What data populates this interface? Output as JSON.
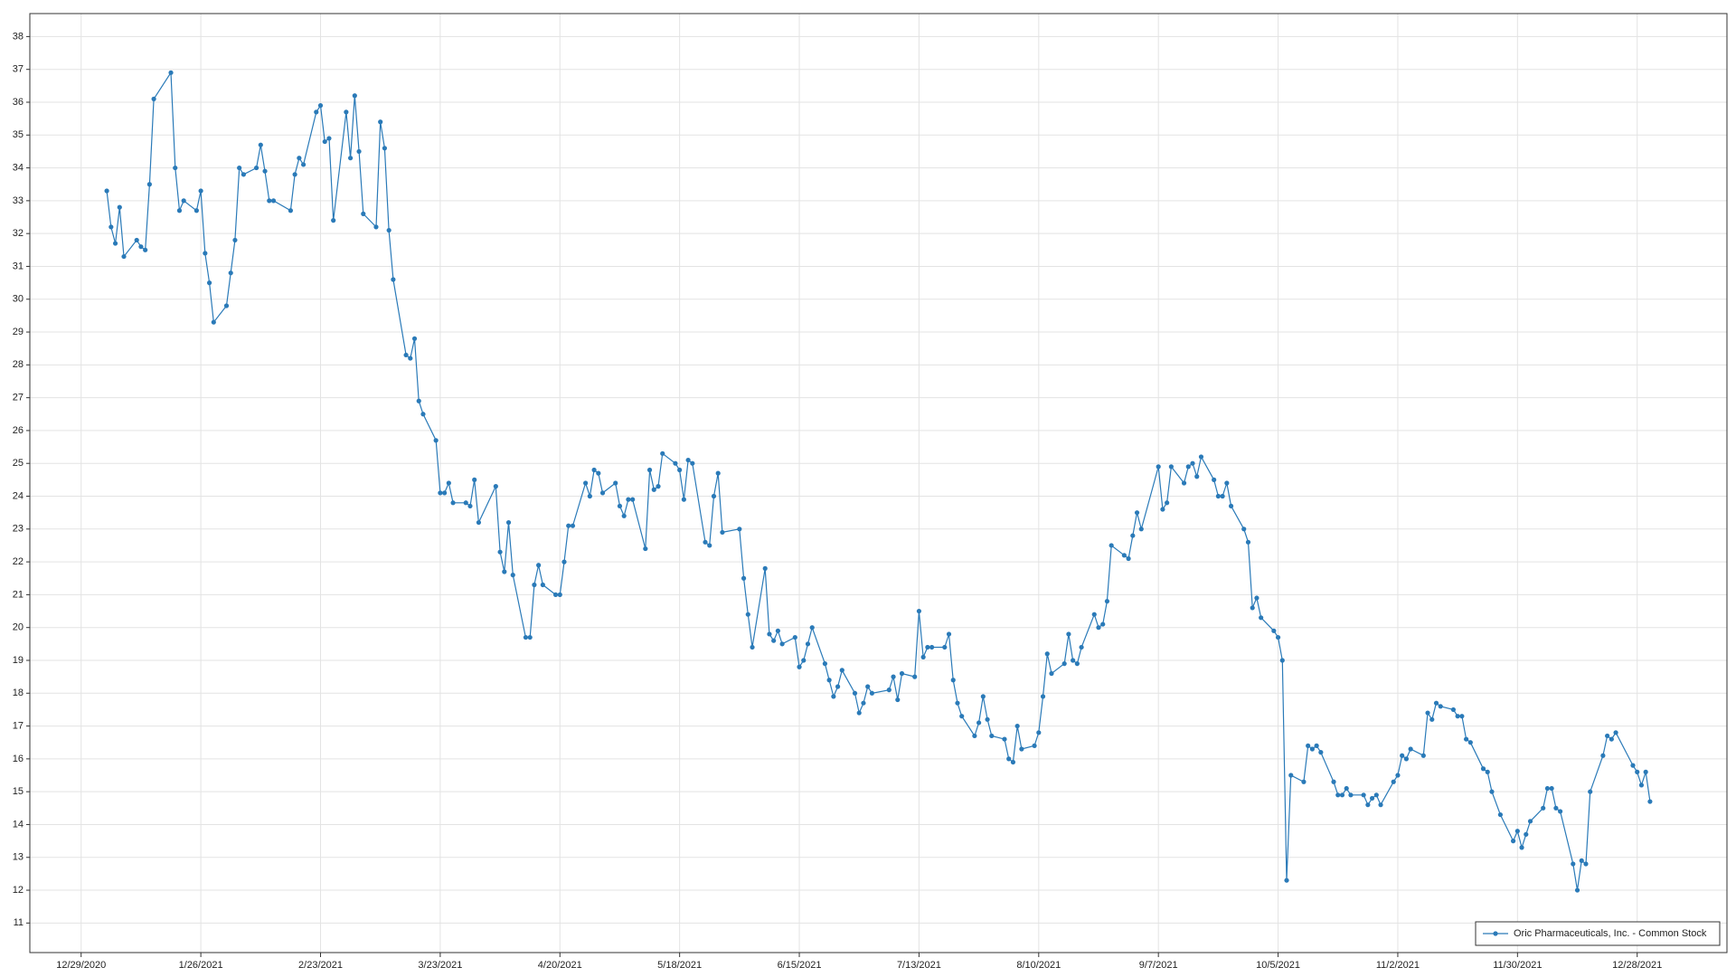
{
  "chart_data": {
    "type": "line",
    "x": [
      "1/4/2021",
      "1/5/2021",
      "1/6/2021",
      "1/7/2021",
      "1/8/2021",
      "1/11/2021",
      "1/12/2021",
      "1/13/2021",
      "1/14/2021",
      "1/15/2021",
      "1/19/2021",
      "1/20/2021",
      "1/21/2021",
      "1/22/2021",
      "1/25/2021",
      "1/26/2021",
      "1/27/2021",
      "1/28/2021",
      "1/29/2021",
      "2/1/2021",
      "2/2/2021",
      "2/3/2021",
      "2/4/2021",
      "2/5/2021",
      "2/8/2021",
      "2/9/2021",
      "2/10/2021",
      "2/11/2021",
      "2/12/2021",
      "2/16/2021",
      "2/17/2021",
      "2/18/2021",
      "2/19/2021",
      "2/22/2021",
      "2/23/2021",
      "2/24/2021",
      "2/25/2021",
      "2/26/2021",
      "3/1/2021",
      "3/2/2021",
      "3/3/2021",
      "3/4/2021",
      "3/5/2021",
      "3/8/2021",
      "3/9/2021",
      "3/10/2021",
      "3/11/2021",
      "3/12/2021",
      "3/15/2021",
      "3/16/2021",
      "3/17/2021",
      "3/18/2021",
      "3/19/2021",
      "3/22/2021",
      "3/23/2021",
      "3/24/2021",
      "3/25/2021",
      "3/26/2021",
      "3/29/2021",
      "3/30/2021",
      "3/31/2021",
      "4/1/2021",
      "4/5/2021",
      "4/6/2021",
      "4/7/2021",
      "4/8/2021",
      "4/9/2021",
      "4/12/2021",
      "4/13/2021",
      "4/14/2021",
      "4/15/2021",
      "4/16/2021",
      "4/19/2021",
      "4/20/2021",
      "4/21/2021",
      "4/22/2021",
      "4/23/2021",
      "4/26/2021",
      "4/27/2021",
      "4/28/2021",
      "4/29/2021",
      "4/30/2021",
      "5/3/2021",
      "5/4/2021",
      "5/5/2021",
      "5/6/2021",
      "5/7/2021",
      "5/10/2021",
      "5/11/2021",
      "5/12/2021",
      "5/13/2021",
      "5/14/2021",
      "5/17/2021",
      "5/18/2021",
      "5/19/2021",
      "5/20/2021",
      "5/21/2021",
      "5/24/2021",
      "5/25/2021",
      "5/26/2021",
      "5/27/2021",
      "5/28/2021",
      "6/1/2021",
      "6/2/2021",
      "6/3/2021",
      "6/4/2021",
      "6/7/2021",
      "6/8/2021",
      "6/9/2021",
      "6/10/2021",
      "6/11/2021",
      "6/14/2021",
      "6/15/2021",
      "6/16/2021",
      "6/17/2021",
      "6/18/2021",
      "6/21/2021",
      "6/22/2021",
      "6/23/2021",
      "6/24/2021",
      "6/25/2021",
      "6/28/2021",
      "6/29/2021",
      "6/30/2021",
      "7/1/2021",
      "7/2/2021",
      "7/6/2021",
      "7/7/2021",
      "7/8/2021",
      "7/9/2021",
      "7/12/2021",
      "7/13/2021",
      "7/14/2021",
      "7/15/2021",
      "7/16/2021",
      "7/19/2021",
      "7/20/2021",
      "7/21/2021",
      "7/22/2021",
      "7/23/2021",
      "7/26/2021",
      "7/27/2021",
      "7/28/2021",
      "7/29/2021",
      "7/30/2021",
      "8/2/2021",
      "8/3/2021",
      "8/4/2021",
      "8/5/2021",
      "8/6/2021",
      "8/9/2021",
      "8/10/2021",
      "8/11/2021",
      "8/12/2021",
      "8/13/2021",
      "8/16/2021",
      "8/17/2021",
      "8/18/2021",
      "8/19/2021",
      "8/20/2021",
      "8/23/2021",
      "8/24/2021",
      "8/25/2021",
      "8/26/2021",
      "8/27/2021",
      "8/30/2021",
      "8/31/2021",
      "9/1/2021",
      "9/2/2021",
      "9/3/2021",
      "9/7/2021",
      "9/8/2021",
      "9/9/2021",
      "9/10/2021",
      "9/13/2021",
      "9/14/2021",
      "9/15/2021",
      "9/16/2021",
      "9/17/2021",
      "9/20/2021",
      "9/21/2021",
      "9/22/2021",
      "9/23/2021",
      "9/24/2021",
      "9/27/2021",
      "9/28/2021",
      "9/29/2021",
      "9/30/2021",
      "10/1/2021",
      "10/4/2021",
      "10/5/2021",
      "10/6/2021",
      "10/7/2021",
      "10/8/2021",
      "10/11/2021",
      "10/12/2021",
      "10/13/2021",
      "10/14/2021",
      "10/15/2021",
      "10/18/2021",
      "10/19/2021",
      "10/20/2021",
      "10/21/2021",
      "10/22/2021",
      "10/25/2021",
      "10/26/2021",
      "10/27/2021",
      "10/28/2021",
      "10/29/2021",
      "11/1/2021",
      "11/2/2021",
      "11/3/2021",
      "11/4/2021",
      "11/5/2021",
      "11/8/2021",
      "11/9/2021",
      "11/10/2021",
      "11/11/2021",
      "11/12/2021",
      "11/15/2021",
      "11/16/2021",
      "11/17/2021",
      "11/18/2021",
      "11/19/2021",
      "11/22/2021",
      "11/23/2021",
      "11/24/2021",
      "11/26/2021",
      "11/29/2021",
      "11/30/2021",
      "12/1/2021",
      "12/2/2021",
      "12/3/2021",
      "12/6/2021",
      "12/7/2021",
      "12/8/2021",
      "12/9/2021",
      "12/10/2021",
      "12/13/2021",
      "12/14/2021",
      "12/15/2021",
      "12/16/2021",
      "12/17/2021",
      "12/20/2021",
      "12/21/2021",
      "12/22/2021",
      "12/23/2021",
      "12/27/2021",
      "12/28/2021",
      "12/29/2021",
      "12/30/2021",
      "12/31/2021"
    ],
    "series": [
      {
        "name": "Oric Pharmaceuticals, Inc. - Common Stock",
        "color": "#2a7ab8",
        "values": [
          33.3,
          32.2,
          31.7,
          32.8,
          31.3,
          31.8,
          31.6,
          31.5,
          33.5,
          36.1,
          36.9,
          34.0,
          32.7,
          33.0,
          32.7,
          33.3,
          31.4,
          30.5,
          29.3,
          29.8,
          30.8,
          31.8,
          34.0,
          33.8,
          34.0,
          34.7,
          33.9,
          33.0,
          33.0,
          32.7,
          33.8,
          34.3,
          34.1,
          35.7,
          35.9,
          34.8,
          34.9,
          32.4,
          35.7,
          34.3,
          36.2,
          34.5,
          32.6,
          32.2,
          35.4,
          34.6,
          32.1,
          30.6,
          28.3,
          28.2,
          28.8,
          26.9,
          26.5,
          25.7,
          24.1,
          24.1,
          24.4,
          23.8,
          23.8,
          23.7,
          24.5,
          23.2,
          24.3,
          22.3,
          21.7,
          23.2,
          21.6,
          19.7,
          19.7,
          21.3,
          21.9,
          21.3,
          21.0,
          21.0,
          22.0,
          23.1,
          23.1,
          24.4,
          24.0,
          24.8,
          24.7,
          24.1,
          24.4,
          23.7,
          23.4,
          23.9,
          23.9,
          22.4,
          24.8,
          24.2,
          24.3,
          25.3,
          25.0,
          24.8,
          23.9,
          25.1,
          25.0,
          22.6,
          22.5,
          24.0,
          24.7,
          22.9,
          23.0,
          21.5,
          20.4,
          19.4,
          21.8,
          19.8,
          19.6,
          19.9,
          19.5,
          19.7,
          18.8,
          19.0,
          19.5,
          20.0,
          18.9,
          18.4,
          17.9,
          18.2,
          18.7,
          18.0,
          17.4,
          17.7,
          18.2,
          18.0,
          18.1,
          18.5,
          17.8,
          18.6,
          18.5,
          20.5,
          19.1,
          19.4,
          19.4,
          19.4,
          19.8,
          18.4,
          17.7,
          17.3,
          16.7,
          17.1,
          17.9,
          17.2,
          16.7,
          16.6,
          16.0,
          15.9,
          17.0,
          16.3,
          16.4,
          16.8,
          17.9,
          19.2,
          18.6,
          18.9,
          19.8,
          19.0,
          18.9,
          19.4,
          20.4,
          20.0,
          20.1,
          20.8,
          22.5,
          22.2,
          22.1,
          22.8,
          23.5,
          23.0,
          24.9,
          23.6,
          23.8,
          24.9,
          24.4,
          24.9,
          25.0,
          24.6,
          25.2,
          24.5,
          24.0,
          24.0,
          24.4,
          23.7,
          23.0,
          22.6,
          20.6,
          20.9,
          20.3,
          19.9,
          19.7,
          19.0,
          12.3,
          15.5,
          15.3,
          16.4,
          16.3,
          16.4,
          16.2,
          15.3,
          14.9,
          14.9,
          15.1,
          14.9,
          14.9,
          14.6,
          14.8,
          14.9,
          14.6,
          15.3,
          15.5,
          16.1,
          16.0,
          16.3,
          16.1,
          17.4,
          17.2,
          17.7,
          17.6,
          17.5,
          17.3,
          17.3,
          16.6,
          16.5,
          15.7,
          15.6,
          15.0,
          14.3,
          13.5,
          13.8,
          13.3,
          13.7,
          14.1,
          14.5,
          15.1,
          15.1,
          14.5,
          14.4,
          12.8,
          12.0,
          12.9,
          12.8,
          15.0,
          16.1,
          16.7,
          16.6,
          16.8,
          15.8,
          15.6,
          15.2,
          15.6,
          14.7
        ]
      }
    ],
    "xlim": [
      "12/17/2020",
      "1/18/2022"
    ],
    "xticks": [
      "12/29/2020",
      "1/26/2021",
      "2/23/2021",
      "3/23/2021",
      "4/20/2021",
      "5/18/2021",
      "6/15/2021",
      "7/13/2021",
      "8/10/2021",
      "9/7/2021",
      "10/5/2021",
      "11/2/2021",
      "11/30/2021",
      "12/28/2021"
    ],
    "ylim": [
      10.1,
      38.7
    ],
    "yticks": [
      11,
      12,
      13,
      14,
      15,
      16,
      17,
      18,
      19,
      20,
      21,
      22,
      23,
      24,
      25,
      26,
      27,
      28,
      29,
      30,
      31,
      32,
      33,
      34,
      35,
      36,
      37,
      38
    ],
    "grid": true,
    "legend": "lower right"
  }
}
